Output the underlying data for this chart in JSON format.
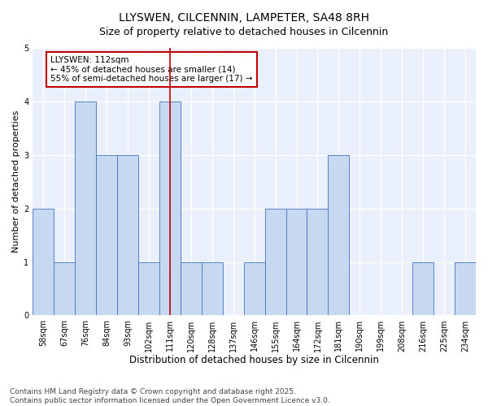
{
  "title": "LLYSWEN, CILCENNIN, LAMPETER, SA48 8RH",
  "subtitle": "Size of property relative to detached houses in Cilcennin",
  "xlabel": "Distribution of detached houses by size in Cilcennin",
  "ylabel": "Number of detached properties",
  "bins": [
    "58sqm",
    "67sqm",
    "76sqm",
    "84sqm",
    "93sqm",
    "102sqm",
    "111sqm",
    "120sqm",
    "128sqm",
    "137sqm",
    "146sqm",
    "155sqm",
    "164sqm",
    "172sqm",
    "181sqm",
    "190sqm",
    "199sqm",
    "208sqm",
    "216sqm",
    "225sqm",
    "234sqm"
  ],
  "values": [
    2,
    1,
    4,
    3,
    3,
    1,
    4,
    1,
    1,
    0,
    1,
    2,
    2,
    2,
    3,
    0,
    0,
    0,
    1,
    0,
    1
  ],
  "bar_color": "#c6d9f0",
  "bar_edge_color": "#4472c4",
  "highlight_index": 6,
  "highlight_line_color": "#c00000",
  "highlight_box_color": "#c00000",
  "annotation_text": "LLYSWEN: 112sqm\n← 45% of detached houses are smaller (14)\n55% of semi-detached houses are larger (17) →",
  "bg_color": "#eaf0fb",
  "grid_color": "#ffffff",
  "ylim": [
    0,
    5
  ],
  "yticks": [
    0,
    1,
    2,
    3,
    4,
    5
  ],
  "footer": "Contains HM Land Registry data © Crown copyright and database right 2025.\nContains public sector information licensed under the Open Government Licence v3.0.",
  "title_fontsize": 10,
  "subtitle_fontsize": 9,
  "xlabel_fontsize": 8.5,
  "ylabel_fontsize": 8,
  "tick_fontsize": 7,
  "annotation_fontsize": 7.5,
  "footer_fontsize": 6.5
}
